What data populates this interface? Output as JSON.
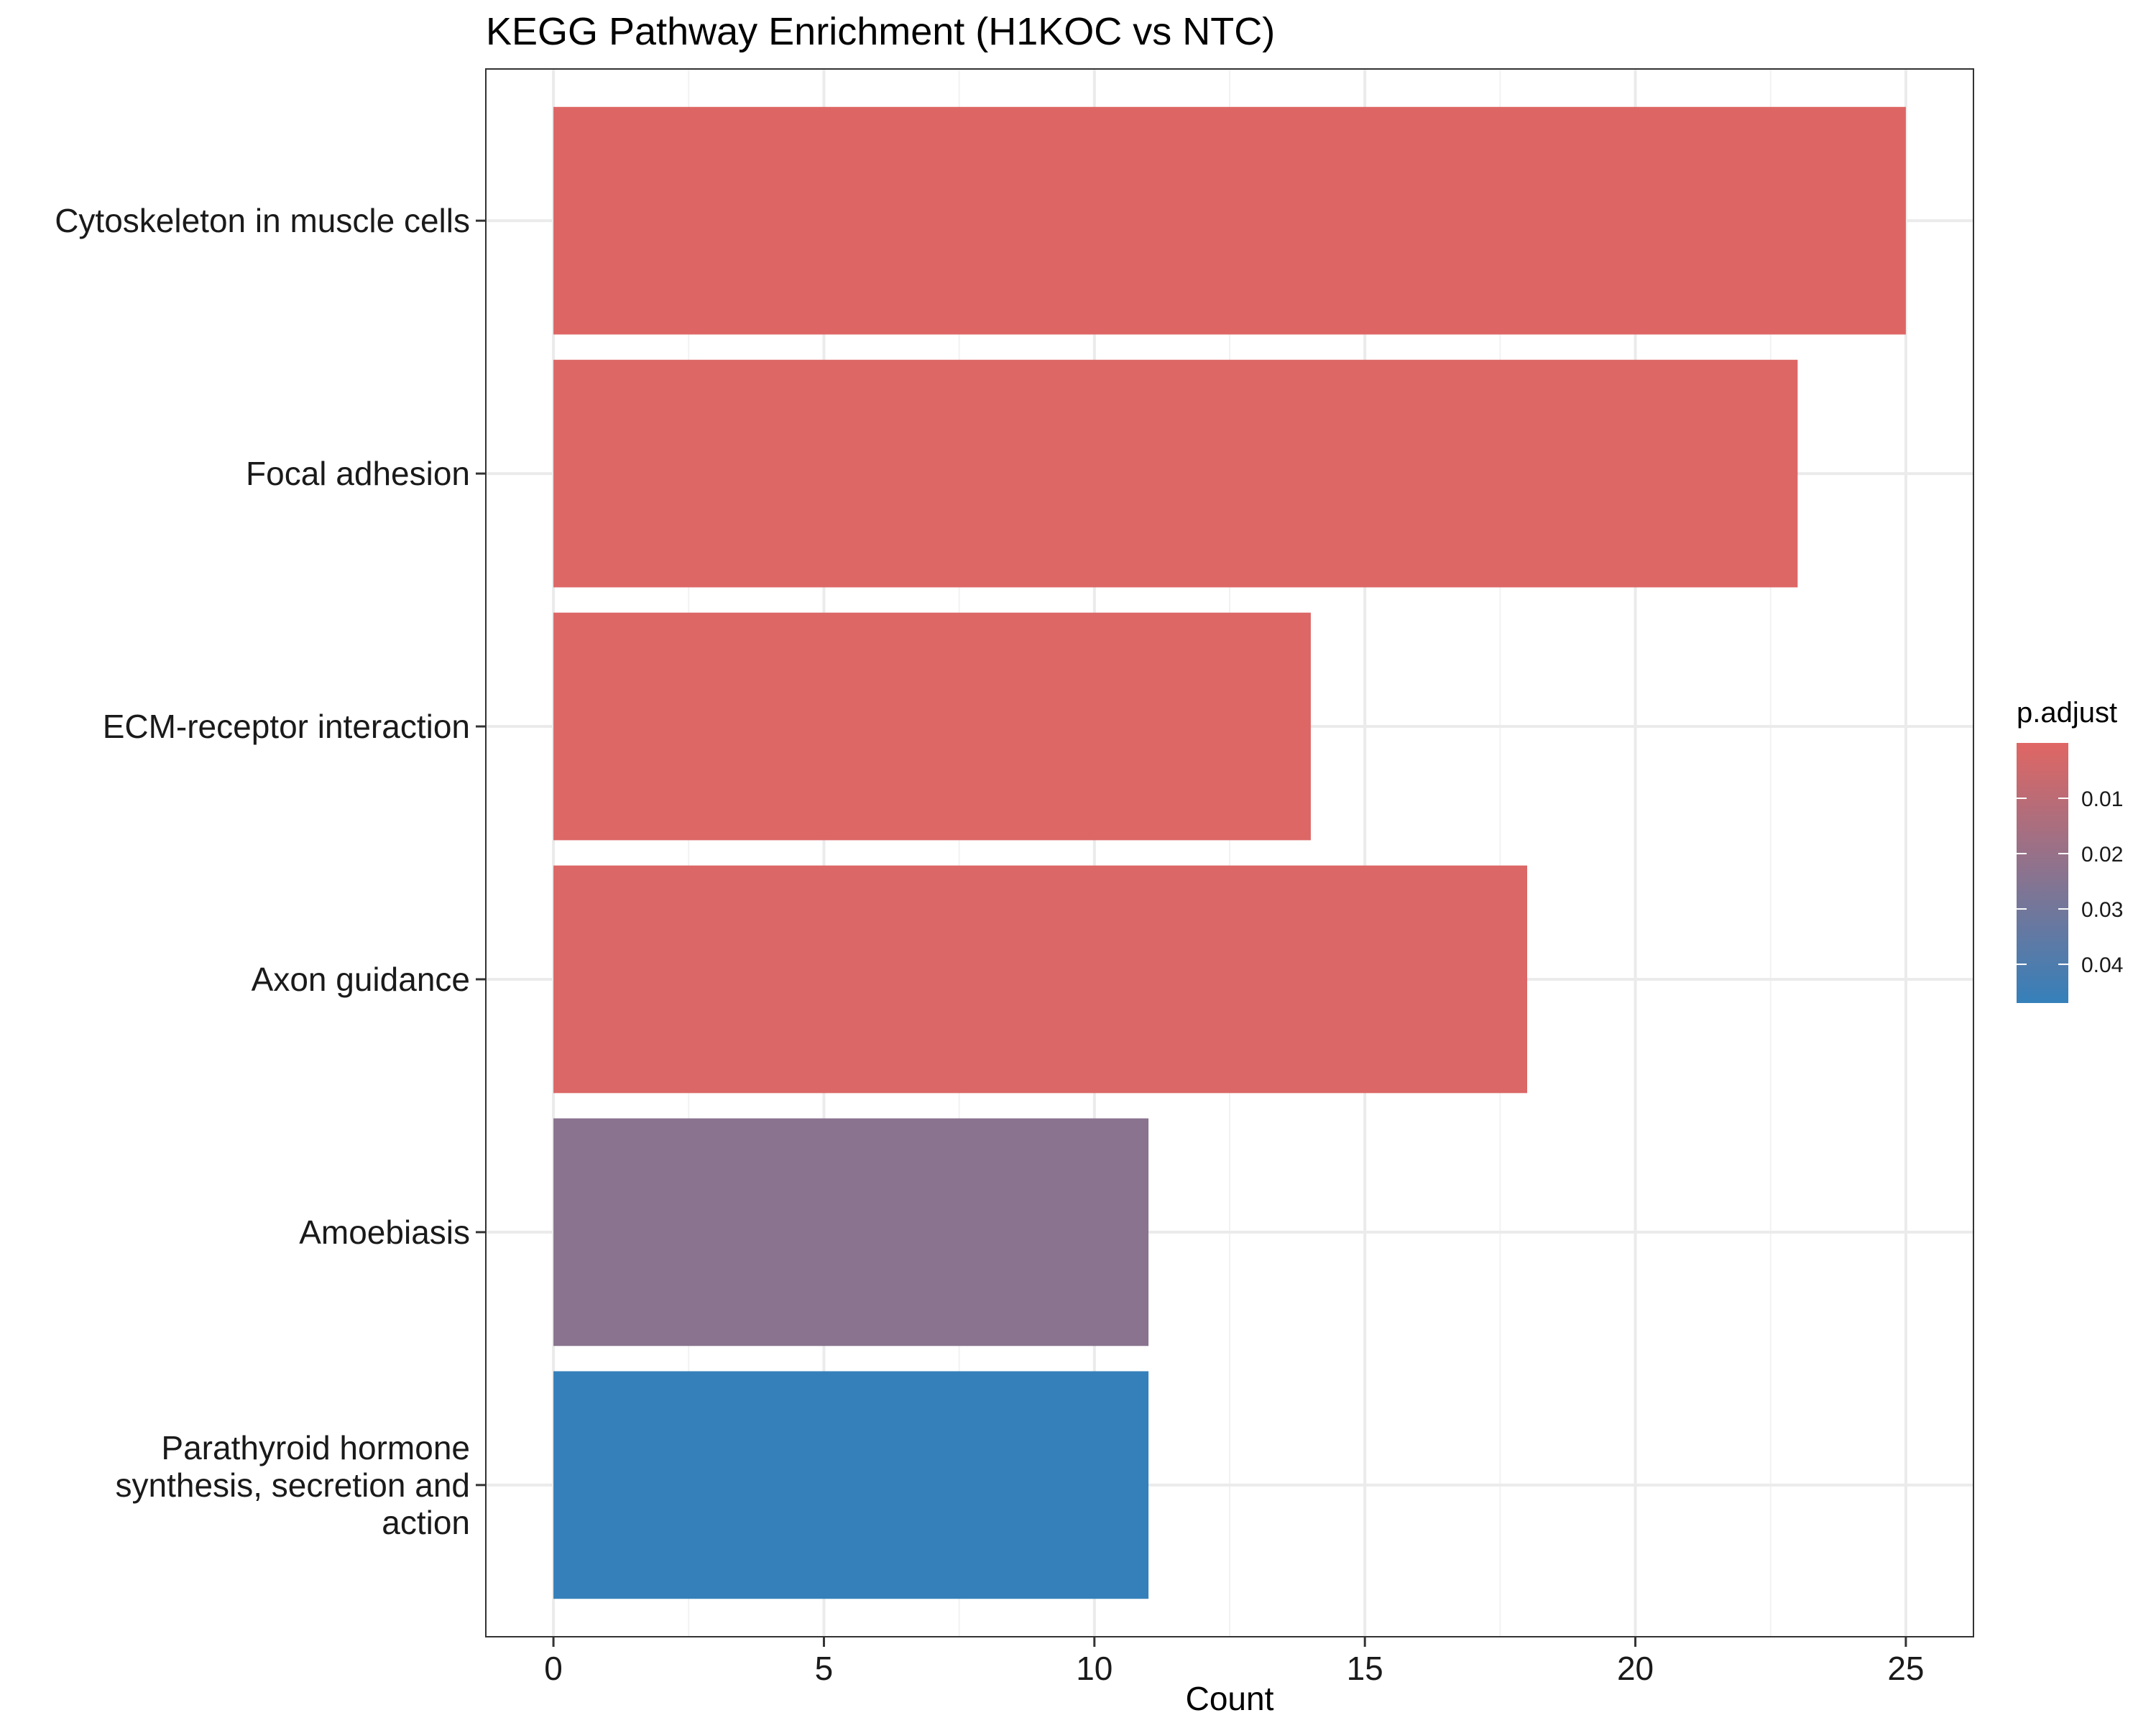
{
  "chart_data": {
    "type": "bar",
    "orientation": "horizontal",
    "title": "KEGG Pathway Enrichment (H1KOC vs NTC)",
    "xlabel": "Count",
    "ylabel": "",
    "xlim": [
      -1.25,
      26.25
    ],
    "x_ticks": [
      0,
      5,
      10,
      15,
      20,
      25
    ],
    "categories": [
      "Cytoskeleton in muscle cells",
      "Focal adhesion",
      "ECM-receptor interaction",
      "Axon guidance",
      "Amoebiasis",
      "Parathyroid hormone synthesis, secretion and action"
    ],
    "category_label_lines": [
      [
        "Cytoskeleton in muscle cells"
      ],
      [
        "Focal adhesion"
      ],
      [
        "ECM-receptor interaction"
      ],
      [
        "Axon guidance"
      ],
      [
        "Amoebiasis"
      ],
      [
        "Parathyroid hormone",
        "synthesis, secretion and",
        "action"
      ]
    ],
    "values": [
      25,
      23,
      14,
      18,
      11,
      11
    ],
    "p_adjust": [
      0.0008,
      0.0012,
      0.0012,
      0.0015,
      0.024,
      0.047
    ],
    "grid": true,
    "legend": {
      "title": "p.adjust",
      "position": "right",
      "ticks": [
        0.01,
        0.02,
        0.03,
        0.04
      ],
      "tick_labels": [
        "0.01",
        "0.02",
        "0.03",
        "0.04"
      ],
      "range": [
        0.0,
        0.047
      ],
      "low_color": "#e06663",
      "high_color": "#3580ba"
    }
  }
}
